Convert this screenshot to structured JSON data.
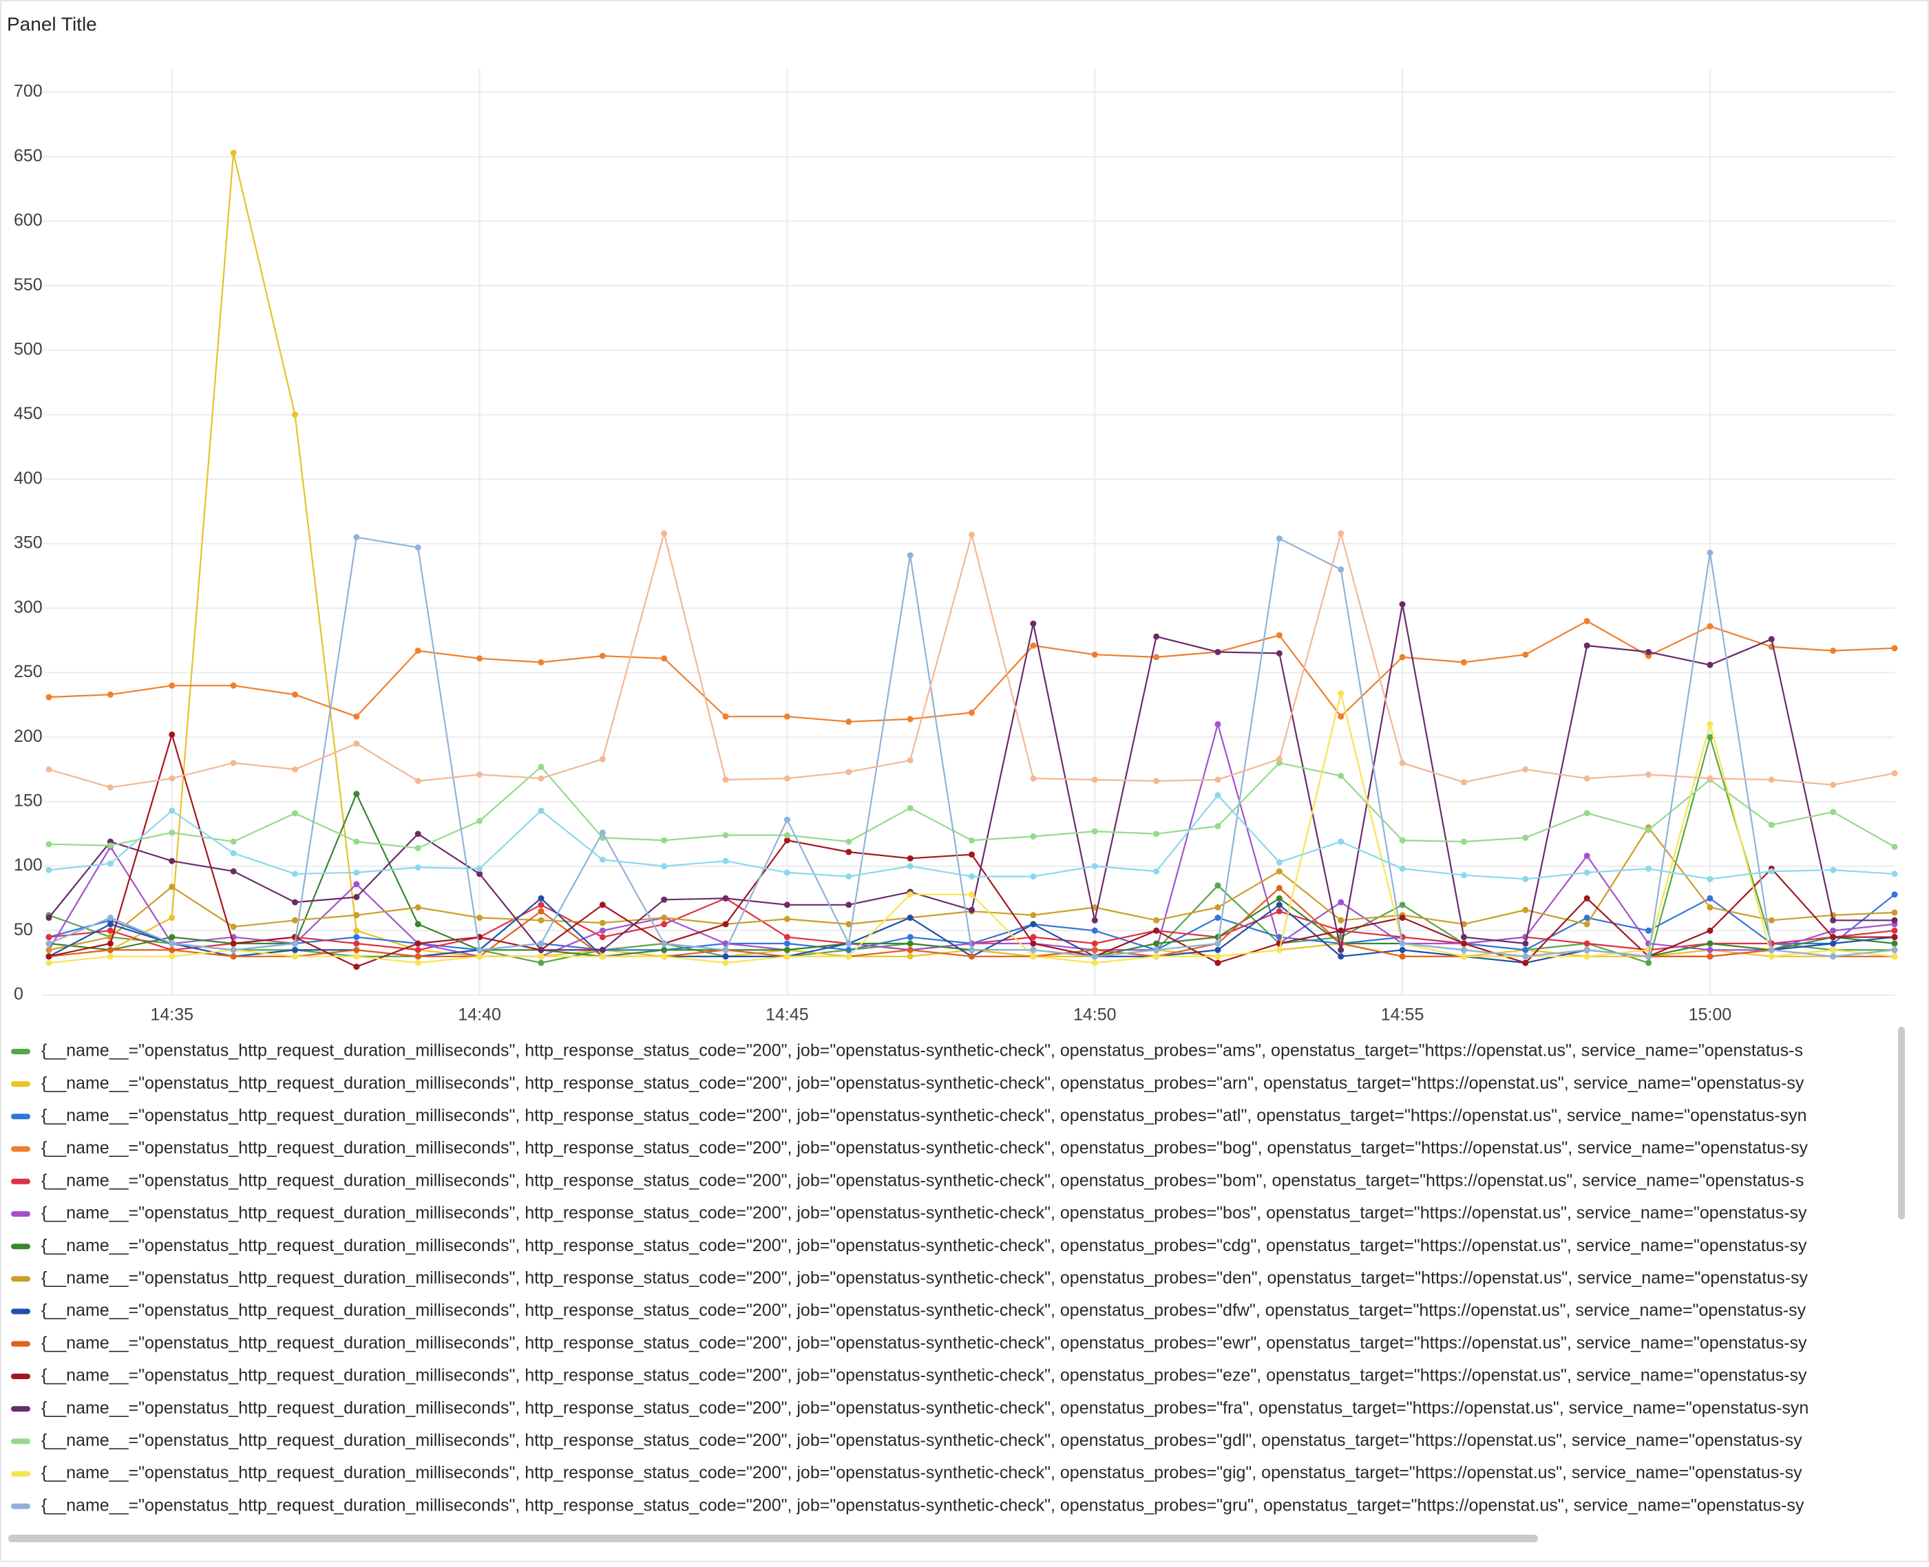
{
  "chart_data": {
    "type": "line",
    "title": "Panel Title",
    "x": [
      "14:33",
      "14:34",
      "14:35",
      "14:36",
      "14:37",
      "14:38",
      "14:39",
      "14:40",
      "14:41",
      "14:42",
      "14:43",
      "14:44",
      "14:45",
      "14:46",
      "14:47",
      "14:48",
      "14:49",
      "14:50",
      "14:51",
      "14:52",
      "14:53",
      "14:54",
      "14:55",
      "14:56",
      "14:57",
      "14:58",
      "14:59",
      "15:00",
      "15:01",
      "15:02",
      "15:03"
    ],
    "xlim": [
      "14:33",
      "15:03"
    ],
    "xticks": [
      "14:35",
      "14:40",
      "14:45",
      "14:50",
      "14:55",
      "15:00"
    ],
    "ylim": [
      0,
      700
    ],
    "yticks": [
      0,
      50,
      100,
      150,
      200,
      250,
      300,
      350,
      400,
      450,
      500,
      550,
      600,
      650,
      700
    ],
    "grid": true,
    "series": [
      {
        "name": "{__name__=\"openstatus_http_request_duration_milliseconds\", http_response_status_code=\"200\", job=\"openstatus-synthetic-check\", openstatus_probes=\"ams\", openstatus_target=\"https://openstat.us\", service_name=\"openstatus-s",
        "color": "#56a64b",
        "values": [
          62,
          45,
          40,
          35,
          35,
          30,
          30,
          35,
          25,
          35,
          40,
          30,
          30,
          35,
          40,
          35,
          30,
          35,
          35,
          85,
          40,
          45,
          70,
          40,
          35,
          40,
          25,
          200,
          40,
          35,
          35
        ]
      },
      {
        "name": "{__name__=\"openstatus_http_request_duration_milliseconds\", http_response_status_code=\"200\", job=\"openstatus-synthetic-check\", openstatus_probes=\"arn\", openstatus_target=\"https://openstat.us\", service_name=\"openstatus-sy",
        "color": "#e8c226",
        "values": [
          30,
          35,
          60,
          653,
          450,
          50,
          35,
          30,
          30,
          35,
          30,
          30,
          35,
          30,
          30,
          35,
          30,
          30,
          35,
          30,
          35,
          40,
          30,
          30,
          35,
          30,
          30,
          35,
          30,
          30,
          35
        ]
      },
      {
        "name": "{__name__=\"openstatus_http_request_duration_milliseconds\", http_response_status_code=\"200\", job=\"openstatus-synthetic-check\", openstatus_probes=\"atl\", openstatus_target=\"https://openstat.us\", service_name=\"openstatus-syn",
        "color": "#3274d9",
        "values": [
          45,
          58,
          40,
          35,
          40,
          45,
          40,
          35,
          40,
          35,
          35,
          40,
          40,
          35,
          45,
          40,
          55,
          50,
          35,
          60,
          45,
          40,
          45,
          40,
          35,
          60,
          50,
          75,
          40,
          40,
          78
        ]
      },
      {
        "name": "{__name__=\"openstatus_http_request_duration_milliseconds\", http_response_status_code=\"200\", job=\"openstatus-synthetic-check\", openstatus_probes=\"bog\", openstatus_target=\"https://openstat.us\", service_name=\"openstatus-sy",
        "color": "#ef7f2b",
        "values": [
          231,
          233,
          240,
          240,
          233,
          216,
          267,
          261,
          258,
          263,
          261,
          216,
          216,
          212,
          214,
          219,
          271,
          264,
          262,
          266,
          279,
          216,
          262,
          258,
          264,
          290,
          263,
          286,
          270,
          267,
          269
        ]
      },
      {
        "name": "{__name__=\"openstatus_http_request_duration_milliseconds\", http_response_status_code=\"200\", job=\"openstatus-synthetic-check\", openstatus_probes=\"bom\", openstatus_target=\"https://openstat.us\", service_name=\"openstatus-s",
        "color": "#e02f44",
        "values": [
          45,
          50,
          35,
          40,
          45,
          40,
          35,
          45,
          70,
          45,
          55,
          75,
          45,
          40,
          35,
          40,
          45,
          40,
          50,
          45,
          65,
          50,
          45,
          40,
          45,
          40,
          35,
          40,
          40,
          45,
          50
        ]
      },
      {
        "name": "{__name__=\"openstatus_http_request_duration_milliseconds\", http_response_status_code=\"200\", job=\"openstatus-synthetic-check\", openstatus_probes=\"bos\", openstatus_target=\"https://openstat.us\", service_name=\"openstatus-sy",
        "color": "#a352cc",
        "values": [
          35,
          115,
          40,
          45,
          40,
          86,
          40,
          30,
          30,
          50,
          60,
          40,
          35,
          40,
          35,
          40,
          40,
          35,
          35,
          210,
          40,
          72,
          40,
          40,
          45,
          108,
          40,
          35,
          35,
          50,
          55
        ]
      },
      {
        "name": "{__name__=\"openstatus_http_request_duration_milliseconds\", http_response_status_code=\"200\", job=\"openstatus-synthetic-check\", openstatus_probes=\"cdg\", openstatus_target=\"https://openstat.us\", service_name=\"openstatus-sy",
        "color": "#37872d",
        "values": [
          40,
          35,
          45,
          40,
          40,
          156,
          55,
          35,
          35,
          30,
          35,
          35,
          35,
          40,
          40,
          35,
          35,
          30,
          40,
          45,
          75,
          40,
          40,
          35,
          30,
          35,
          30,
          40,
          35,
          45,
          40
        ]
      },
      {
        "name": "{__name__=\"openstatus_http_request_duration_milliseconds\", http_response_status_code=\"200\", job=\"openstatus-synthetic-check\", openstatus_probes=\"den\", openstatus_target=\"https://openstat.us\", service_name=\"openstatus-sy",
        "color": "#cc9d27",
        "values": [
          35,
          45,
          84,
          53,
          58,
          62,
          68,
          60,
          58,
          56,
          60,
          55,
          59,
          55,
          60,
          65,
          62,
          68,
          58,
          68,
          96,
          58,
          62,
          55,
          66,
          55,
          130,
          68,
          58,
          62,
          64
        ]
      },
      {
        "name": "{__name__=\"openstatus_http_request_duration_milliseconds\", http_response_status_code=\"200\", job=\"openstatus-synthetic-check\", openstatus_probes=\"dfw\", openstatus_target=\"https://openstat.us\", service_name=\"openstatus-sy",
        "color": "#1f4fa8",
        "values": [
          30,
          55,
          40,
          30,
          35,
          35,
          30,
          35,
          75,
          30,
          30,
          30,
          30,
          40,
          60,
          30,
          55,
          30,
          30,
          35,
          70,
          30,
          35,
          30,
          25,
          35,
          30,
          30,
          35,
          40,
          45
        ]
      },
      {
        "name": "{__name__=\"openstatus_http_request_duration_milliseconds\", http_response_status_code=\"200\", job=\"openstatus-synthetic-check\", openstatus_probes=\"ewr\", openstatus_target=\"https://openstat.us\", service_name=\"openstatus-sy",
        "color": "#e0611a",
        "values": [
          30,
          35,
          35,
          30,
          30,
          35,
          30,
          30,
          65,
          30,
          30,
          35,
          30,
          30,
          35,
          30,
          30,
          35,
          30,
          40,
          83,
          40,
          30,
          30,
          30,
          35,
          30,
          30,
          35,
          30,
          30
        ]
      },
      {
        "name": "{__name__=\"openstatus_http_request_duration_milliseconds\", http_response_status_code=\"200\", job=\"openstatus-synthetic-check\", openstatus_probes=\"eze\", openstatus_target=\"https://openstat.us\", service_name=\"openstatus-sy",
        "color": "#a3161d",
        "values": [
          30,
          40,
          202,
          40,
          45,
          22,
          40,
          45,
          35,
          70,
          40,
          55,
          120,
          111,
          106,
          109,
          40,
          30,
          50,
          25,
          40,
          50,
          60,
          40,
          25,
          75,
          30,
          50,
          98,
          45,
          45
        ]
      },
      {
        "name": "{__name__=\"openstatus_http_request_duration_milliseconds\", http_response_status_code=\"200\", job=\"openstatus-synthetic-check\", openstatus_probes=\"fra\", openstatus_target=\"https://openstat.us\", service_name=\"openstatus-syn",
        "color": "#6b2a6a",
        "values": [
          60,
          119,
          104,
          96,
          72,
          76,
          125,
          94,
          35,
          35,
          74,
          75,
          70,
          70,
          80,
          66,
          288,
          58,
          278,
          266,
          265,
          35,
          303,
          45,
          40,
          271,
          266,
          256,
          276,
          58,
          58
        ]
      },
      {
        "name": "{__name__=\"openstatus_http_request_duration_milliseconds\", http_response_status_code=\"200\", job=\"openstatus-synthetic-check\", openstatus_probes=\"gdl\", openstatus_target=\"https://openstat.us\", service_name=\"openstatus-sy",
        "color": "#96d98d",
        "values": [
          117,
          116,
          126,
          119,
          141,
          119,
          114,
          135,
          177,
          122,
          120,
          124,
          124,
          119,
          145,
          120,
          123,
          127,
          125,
          131,
          180,
          170,
          120,
          119,
          122,
          141,
          128,
          167,
          132,
          142,
          115
        ]
      },
      {
        "name": "{__name__=\"openstatus_http_request_duration_milliseconds\", http_response_status_code=\"200\", job=\"openstatus-synthetic-check\", openstatus_probes=\"gig\", openstatus_target=\"https://openstat.us\", service_name=\"openstatus-sy",
        "color": "#f8e452",
        "values": [
          25,
          30,
          30,
          35,
          30,
          30,
          25,
          30,
          30,
          30,
          30,
          25,
          30,
          30,
          78,
          78,
          30,
          25,
          30,
          30,
          35,
          234,
          40,
          30,
          30,
          30,
          35,
          210,
          30,
          35,
          30
        ]
      },
      {
        "name": "{__name__=\"openstatus_http_request_duration_milliseconds\", http_response_status_code=\"200\", job=\"openstatus-synthetic-check\", openstatus_probes=\"gru\", openstatus_target=\"https://openstat.us\", service_name=\"openstatus-sy",
        "color": "#8fb2d8",
        "values": [
          40,
          60,
          40,
          35,
          40,
          355,
          347,
          35,
          40,
          126,
          40,
          35,
          136,
          40,
          341,
          35,
          35,
          30,
          35,
          40,
          354,
          330,
          40,
          35,
          30,
          35,
          30,
          343,
          35,
          30,
          35
        ]
      },
      {
        "color": "#f4b792",
        "values": [
          175,
          161,
          168,
          180,
          175,
          195,
          166,
          171,
          168,
          183,
          358,
          167,
          168,
          173,
          182,
          357,
          168,
          167,
          166,
          167,
          183,
          358,
          180,
          165,
          175,
          168,
          171,
          168,
          167,
          163,
          172
        ]
      },
      {
        "color": "#8ad8ec",
        "values": [
          97,
          102,
          143,
          110,
          94,
          95,
          99,
          98,
          143,
          105,
          100,
          104,
          95,
          92,
          100,
          92,
          92,
          100,
          96,
          155,
          103,
          119,
          98,
          93,
          90,
          95,
          98,
          90,
          96,
          97,
          94
        ]
      }
    ]
  }
}
